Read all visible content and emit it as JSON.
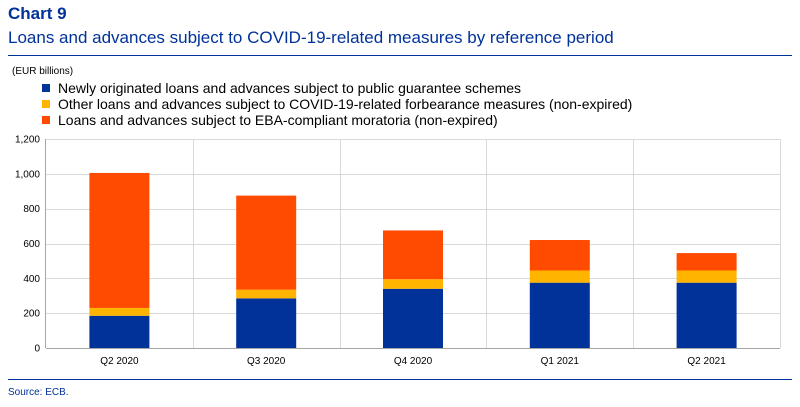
{
  "header": {
    "chart_label": "Chart 9",
    "title": "Loans and advances subject to COVID-19-related measures by reference period",
    "unit": "(EUR billions)",
    "source": "Source: ECB."
  },
  "chart_data": {
    "type": "bar",
    "stacked": true,
    "title": "Loans and advances subject to COVID-19-related measures by reference period",
    "xlabel": "",
    "ylabel": "(EUR billions)",
    "categories": [
      "Q2 2020",
      "Q3 2020",
      "Q4 2020",
      "Q1 2021",
      "Q2 2021"
    ],
    "ylim": [
      0,
      1200
    ],
    "yticks": [
      0,
      200,
      400,
      600,
      800,
      1000,
      1200
    ],
    "ytick_labels": [
      "0",
      "200",
      "400",
      "600",
      "800",
      "1,000",
      "1,200"
    ],
    "grid": true,
    "legend_position": "top-left",
    "series": [
      {
        "name": "Newly originated loans and advances subject to public guarantee schemes",
        "color": "#003299",
        "values": [
          185,
          285,
          340,
          375,
          375
        ]
      },
      {
        "name": "Other loans and advances subject to COVID-19-related forbearance measures (non-expired)",
        "color": "#ffb400",
        "values": [
          45,
          50,
          55,
          70,
          70
        ]
      },
      {
        "name": "Loans and advances subject to EBA-compliant moratoria (non-expired)",
        "color": "#ff4b00",
        "values": [
          775,
          540,
          280,
          175,
          100
        ]
      }
    ]
  }
}
